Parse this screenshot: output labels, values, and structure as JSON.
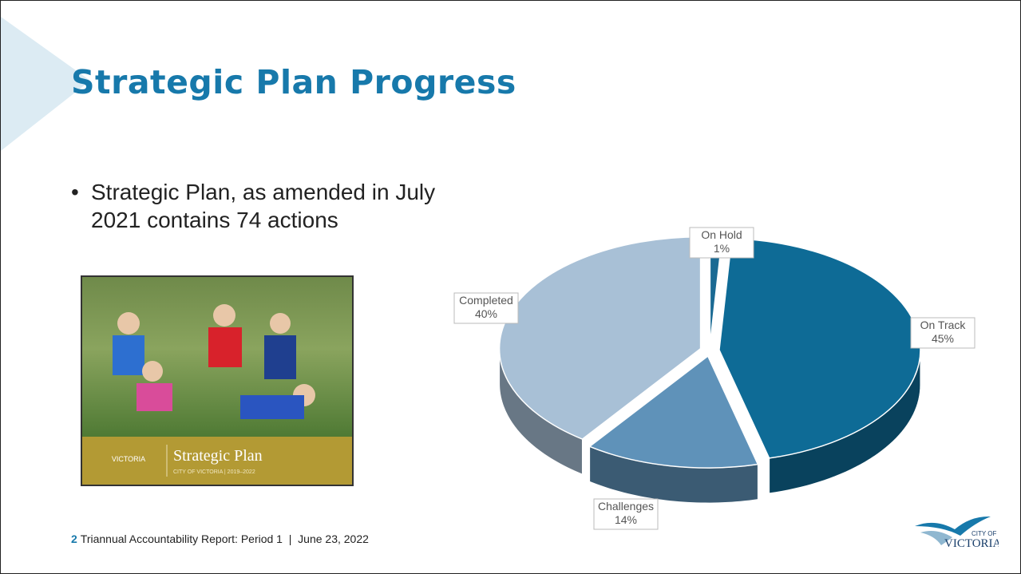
{
  "title": "Strategic Plan Progress",
  "bullet": "Strategic Plan, as amended in July 2021 contains 74 actions",
  "cover": {
    "title": "Strategic Plan",
    "subtitle": "CITY OF VICTORIA | 2019–2022"
  },
  "chart_data": {
    "type": "pie",
    "categories": [
      "On Hold",
      "On Track",
      "Challenges",
      "Completed"
    ],
    "values": [
      1,
      45,
      14,
      40
    ],
    "value_labels": [
      "1%",
      "45%",
      "14%",
      "40%"
    ],
    "colors": [
      "#1a6a93",
      "#0e6b96",
      "#5f92b9",
      "#a8c0d6"
    ]
  },
  "footer": {
    "page_number": "2",
    "text": "Triannual Accountability Report: Period 1  |  June 23, 2022"
  },
  "logo": {
    "line1": "CITY OF",
    "line2": "VICTORIA"
  }
}
